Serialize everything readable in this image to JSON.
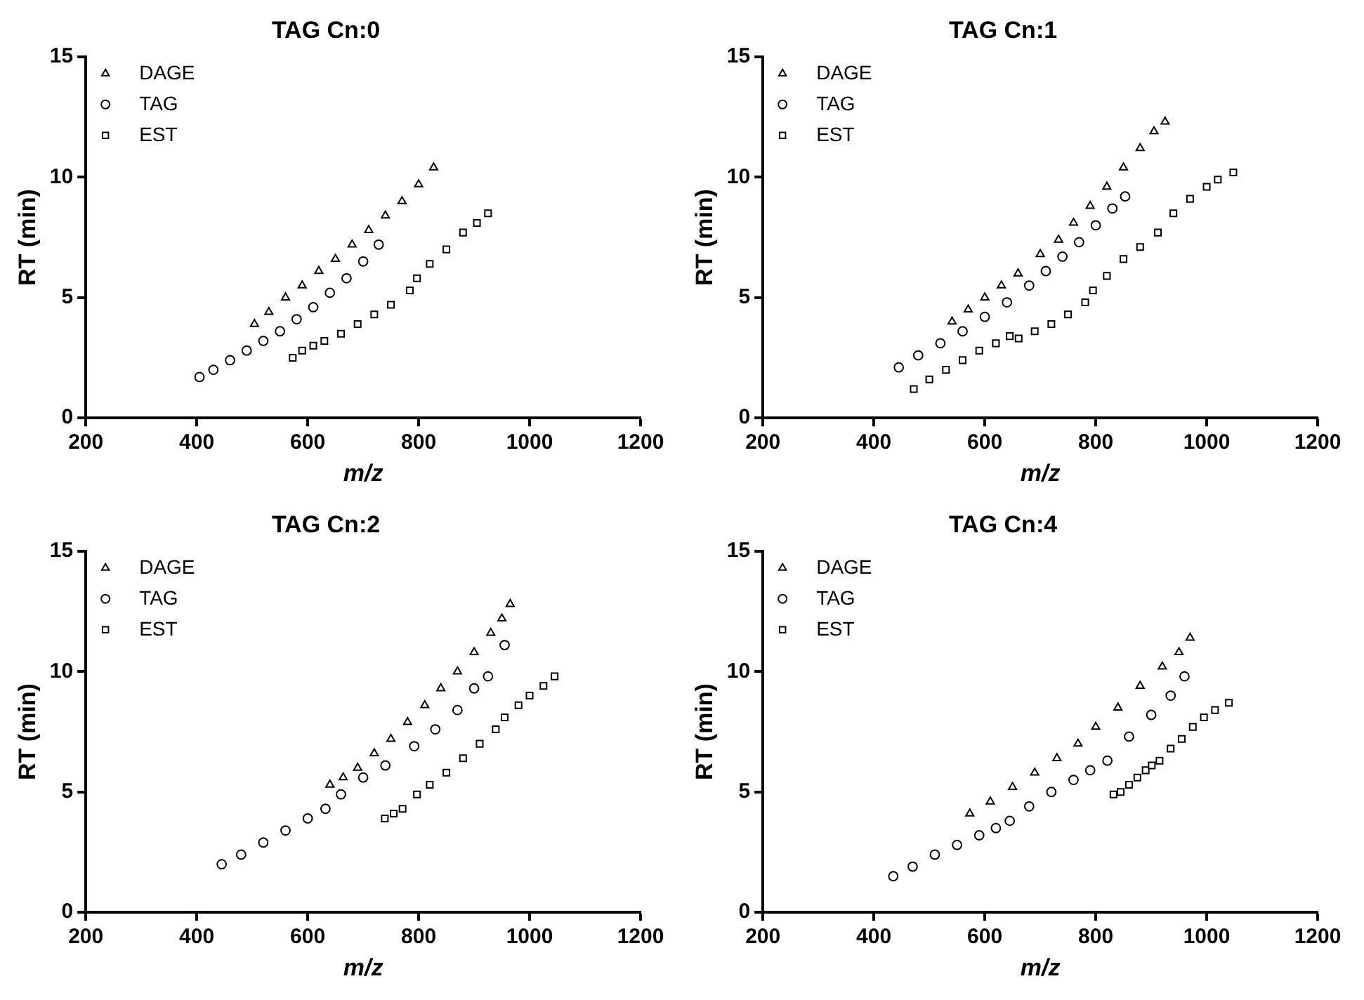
{
  "chart_data": [
    {
      "type": "scatter",
      "title": "TAG Cn:0",
      "xlabel": "m/z",
      "ylabel": "RT (min)",
      "xlim": [
        200,
        1200
      ],
      "xticks": [
        200,
        400,
        600,
        800,
        1000,
        1200
      ],
      "ylim": [
        0,
        15
      ],
      "yticks": [
        0,
        5,
        10,
        15
      ],
      "grid": false,
      "legend": "top left",
      "series": [
        {
          "name": "DAGE",
          "color": "#000000",
          "marker": "triangle",
          "x": [
            504,
            530,
            560,
            590,
            620,
            650,
            680,
            710,
            740,
            770,
            800,
            827
          ],
          "values": [
            3.9,
            4.4,
            5.0,
            5.5,
            6.1,
            6.6,
            7.2,
            7.8,
            8.4,
            9.0,
            9.7,
            10.4
          ]
        },
        {
          "name": "TAG",
          "color": "#000000",
          "marker": "circle",
          "x": [
            405,
            430,
            460,
            490,
            520,
            550,
            580,
            610,
            640,
            670,
            700,
            728
          ],
          "values": [
            1.7,
            2.0,
            2.4,
            2.8,
            3.2,
            3.6,
            4.1,
            4.6,
            5.2,
            5.8,
            6.5,
            7.2
          ]
        },
        {
          "name": "EST",
          "color": "#000000",
          "marker": "square",
          "x": [
            573,
            590,
            610,
            630,
            660,
            690,
            720,
            750,
            784,
            797,
            820,
            850,
            880,
            905,
            925
          ],
          "values": [
            2.5,
            2.8,
            3.0,
            3.2,
            3.5,
            3.9,
            4.3,
            4.7,
            5.3,
            5.8,
            6.4,
            7.0,
            7.7,
            8.1,
            8.5
          ]
        }
      ]
    },
    {
      "type": "scatter",
      "title": "TAG Cn:1",
      "xlabel": "m/z",
      "ylabel": "RT (min)",
      "xlim": [
        200,
        1200
      ],
      "xticks": [
        200,
        400,
        600,
        800,
        1000,
        1200
      ],
      "ylim": [
        0,
        15
      ],
      "yticks": [
        0,
        5,
        10,
        15
      ],
      "grid": false,
      "legend": "top left",
      "series": [
        {
          "name": "DAGE",
          "color": "#000000",
          "marker": "triangle",
          "x": [
            541,
            570,
            600,
            630,
            660,
            700,
            733,
            760,
            790,
            820,
            850,
            880,
            905,
            925
          ],
          "values": [
            4.0,
            4.5,
            5.0,
            5.5,
            6.0,
            6.8,
            7.4,
            8.1,
            8.8,
            9.6,
            10.4,
            11.2,
            11.9,
            12.3
          ]
        },
        {
          "name": "TAG",
          "color": "#000000",
          "marker": "circle",
          "x": [
            445,
            480,
            520,
            560,
            600,
            640,
            680,
            710,
            740,
            770,
            800,
            830,
            853
          ],
          "values": [
            2.1,
            2.6,
            3.1,
            3.6,
            4.2,
            4.8,
            5.5,
            6.1,
            6.7,
            7.3,
            8.0,
            8.7,
            9.2
          ]
        },
        {
          "name": "EST",
          "color": "#000000",
          "marker": "square",
          "x": [
            472,
            500,
            530,
            560,
            590,
            620,
            645,
            661,
            690,
            720,
            750,
            781,
            795,
            820,
            850,
            880,
            912,
            940,
            970,
            1000,
            1020,
            1048
          ],
          "values": [
            1.2,
            1.6,
            2.0,
            2.4,
            2.8,
            3.1,
            3.4,
            3.3,
            3.6,
            3.9,
            4.3,
            4.8,
            5.3,
            5.9,
            6.6,
            7.1,
            7.7,
            8.5,
            9.1,
            9.6,
            9.9,
            10.2
          ]
        }
      ]
    },
    {
      "type": "scatter",
      "title": "TAG Cn:2",
      "xlabel": "m/z",
      "ylabel": "RT (min)",
      "xlim": [
        200,
        1200
      ],
      "xticks": [
        200,
        400,
        600,
        800,
        1000,
        1200
      ],
      "ylim": [
        0,
        15
      ],
      "yticks": [
        0,
        5,
        10,
        15
      ],
      "grid": false,
      "legend": "top left",
      "series": [
        {
          "name": "DAGE",
          "color": "#000000",
          "marker": "triangle",
          "x": [
            640,
            664,
            690,
            720,
            750,
            780,
            811,
            840,
            870,
            900,
            930,
            950,
            965
          ],
          "values": [
            5.3,
            5.6,
            6.0,
            6.6,
            7.2,
            7.9,
            8.6,
            9.3,
            10.0,
            10.8,
            11.6,
            12.2,
            12.8
          ]
        },
        {
          "name": "TAG",
          "color": "#000000",
          "marker": "circle",
          "x": [
            445,
            480,
            520,
            560,
            600,
            632,
            660,
            700,
            740,
            792,
            830,
            870,
            900,
            925,
            955
          ],
          "values": [
            2.0,
            2.4,
            2.9,
            3.4,
            3.9,
            4.3,
            4.9,
            5.6,
            6.1,
            6.9,
            7.6,
            8.4,
            9.3,
            9.8,
            11.1
          ]
        },
        {
          "name": "EST",
          "color": "#000000",
          "marker": "square",
          "x": [
            739,
            755,
            771,
            797,
            820,
            850,
            880,
            910,
            939,
            955,
            980,
            1000,
            1025,
            1045
          ],
          "values": [
            3.9,
            4.1,
            4.3,
            4.9,
            5.3,
            5.8,
            6.4,
            7.0,
            7.6,
            8.1,
            8.6,
            9.0,
            9.4,
            9.8
          ]
        }
      ]
    },
    {
      "type": "scatter",
      "title": "TAG Cn:4",
      "xlabel": "m/z",
      "ylabel": "RT (min)",
      "xlim": [
        200,
        1200
      ],
      "xticks": [
        200,
        400,
        600,
        800,
        1000,
        1200
      ],
      "ylim": [
        0,
        15
      ],
      "yticks": [
        0,
        5,
        10,
        15
      ],
      "grid": false,
      "legend": "top left",
      "series": [
        {
          "name": "DAGE",
          "color": "#000000",
          "marker": "triangle",
          "x": [
            573,
            610,
            650,
            690,
            730,
            768,
            800,
            840,
            880,
            920,
            950,
            970
          ],
          "values": [
            4.1,
            4.6,
            5.2,
            5.8,
            6.4,
            7.0,
            7.7,
            8.5,
            9.4,
            10.2,
            10.8,
            11.4
          ]
        },
        {
          "name": "TAG",
          "color": "#000000",
          "marker": "circle",
          "x": [
            435,
            470,
            510,
            550,
            590,
            620,
            645,
            680,
            720,
            760,
            790,
            821,
            860,
            900,
            935,
            960
          ],
          "values": [
            1.5,
            1.9,
            2.4,
            2.8,
            3.2,
            3.5,
            3.8,
            4.4,
            5.0,
            5.5,
            5.9,
            6.3,
            7.3,
            8.2,
            9.0,
            9.8
          ]
        },
        {
          "name": "EST",
          "color": "#000000",
          "marker": "square",
          "x": [
            832,
            845,
            860,
            875,
            890,
            901,
            915,
            935,
            955,
            975,
            995,
            1015,
            1040
          ],
          "values": [
            4.9,
            5.0,
            5.3,
            5.6,
            5.9,
            6.1,
            6.3,
            6.8,
            7.2,
            7.7,
            8.1,
            8.4,
            8.7
          ]
        }
      ]
    }
  ]
}
